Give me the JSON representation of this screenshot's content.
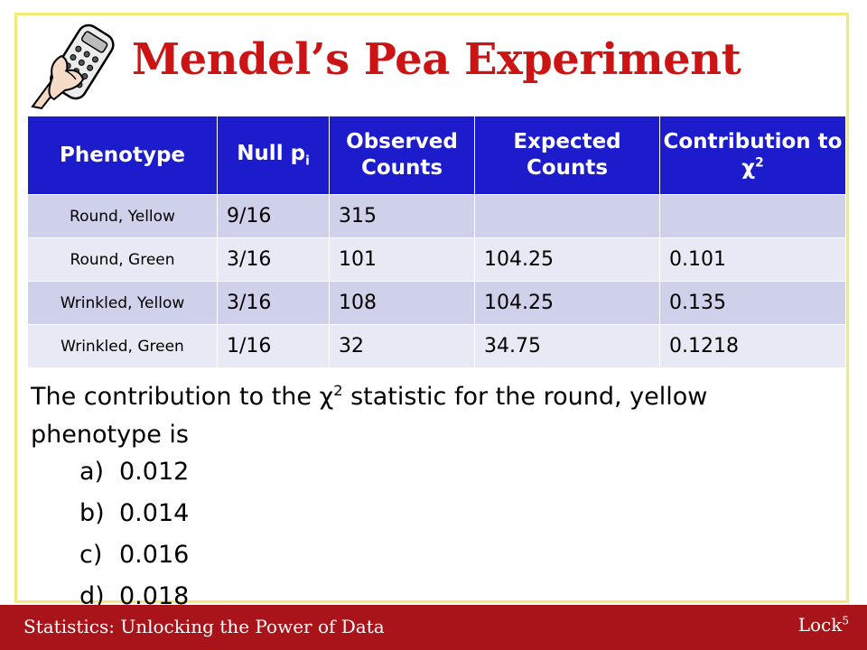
{
  "title": "Mendel’s Pea Experiment",
  "table": {
    "headers": [
      {
        "main": "Phenotype",
        "sub": "",
        "sup": ""
      },
      {
        "main": "Null p",
        "sub": "i",
        "sup": ""
      },
      {
        "main": "Observed Counts",
        "sub": "",
        "sup": ""
      },
      {
        "main": "Expected Counts",
        "sub": "",
        "sup": ""
      },
      {
        "main": "Contribution to χ",
        "sub": "",
        "sup": "2"
      }
    ],
    "rows": [
      {
        "phenotype": "Round, Yellow",
        "null_p": "9/16",
        "observed": "315",
        "expected": "",
        "contribution": ""
      },
      {
        "phenotype": "Round, Green",
        "null_p": "3/16",
        "observed": "101",
        "expected": "104.25",
        "contribution": "0.101"
      },
      {
        "phenotype": "Wrinkled, Yellow",
        "null_p": "3/16",
        "observed": "108",
        "expected": "104.25",
        "contribution": "0.135"
      },
      {
        "phenotype": "Wrinkled, Green",
        "null_p": "1/16",
        "observed": "32",
        "expected": "34.75",
        "contribution": "0.1218"
      }
    ]
  },
  "question": {
    "before": "The contribution to the χ",
    "sup": "2",
    "after": " statistic for the round, yellow phenotype is"
  },
  "choices": [
    {
      "letter": "a)",
      "text": "0.012"
    },
    {
      "letter": "b)",
      "text": "0.014"
    },
    {
      "letter": "c)",
      "text": "0.016"
    },
    {
      "letter": "d)",
      "text": "0.018"
    }
  ],
  "footer": {
    "left": "Statistics: Unlocking the Power of Data",
    "right": "Lock",
    "right_sup": "5"
  },
  "colors": {
    "title": "#cc1414",
    "header_bg": "#1c1ccc",
    "row_odd": "#cfd0ea",
    "row_even": "#e9e9f5",
    "footer_bg": "#a9141b",
    "frame": "#f2ea76"
  },
  "icons": {
    "logo": "clicker-remote-icon"
  }
}
